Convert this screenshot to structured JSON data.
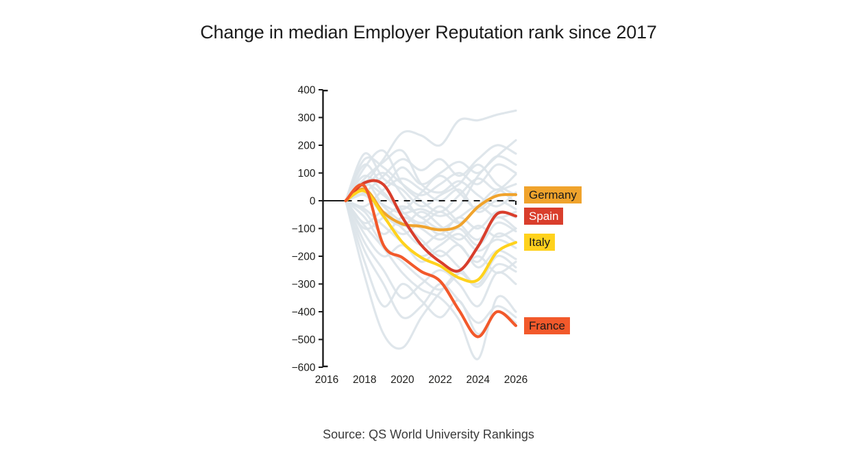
{
  "title": "Change in median Employer Reputation rank since 2017",
  "source": "Source: QS World University Rankings",
  "chart_data": {
    "type": "line",
    "description": "Median Employer Reputation rank change vs 2017 baseline; four highlighted countries over many light background country lines",
    "years": [
      2017,
      2018,
      2019,
      2020,
      2021,
      2022,
      2023,
      2024,
      2025,
      2026
    ],
    "x_axis": {
      "ticks": [
        2016,
        2018,
        2020,
        2022,
        2024,
        2026
      ],
      "tick_labels": [
        "2016",
        "2018",
        "2020",
        "2022",
        "2024",
        "2026"
      ],
      "range": [
        2016,
        2026
      ]
    },
    "y_axis": {
      "ticks": [
        400,
        300,
        200,
        100,
        0,
        -100,
        -200,
        -300,
        -400,
        -500,
        -600
      ],
      "tick_labels": [
        "400",
        "300",
        "200",
        "100",
        "0",
        "−100",
        "−200",
        "−300",
        "−400",
        "−500",
        "−600"
      ],
      "range": [
        400,
        -600
      ]
    },
    "zero_line": {
      "show": true,
      "color": "#1a1a1a",
      "style": "dashed"
    },
    "background_color": "#dce3e9",
    "axis_color": "#1a1a1a",
    "legend_position": "right-of-line-ends",
    "grid": false,
    "highlight": [
      {
        "name": "germany",
        "label": "Germany",
        "color": "#F0A32C",
        "label_bg": "#F0A32C",
        "label_text_color": "#1a1a1a",
        "values": [
          0,
          42,
          -42,
          -84,
          -92,
          -105,
          -90,
          -22,
          18,
          22
        ]
      },
      {
        "name": "spain",
        "label": "Spain",
        "color": "#D93E2C",
        "label_bg": "#D93E2C",
        "label_text_color": "#ffffff",
        "values": [
          0,
          65,
          58,
          -60,
          -160,
          -220,
          -252,
          -165,
          -48,
          -55
        ]
      },
      {
        "name": "italy",
        "label": "Italy",
        "color": "#FFD21D",
        "label_bg": "#FFD21D",
        "label_text_color": "#1a1a1a",
        "values": [
          0,
          35,
          -55,
          -150,
          -205,
          -235,
          -278,
          -285,
          -185,
          -150
        ]
      },
      {
        "name": "france",
        "label": "France",
        "color": "#F2592B",
        "label_bg": "#F2592B",
        "label_text_color": "#1a1a1a",
        "values": [
          0,
          52,
          -160,
          -205,
          -255,
          -290,
          -395,
          -490,
          -400,
          -450
        ]
      }
    ],
    "background_series": [
      [
        0,
        60,
        150,
        245,
        235,
        200,
        290,
        290,
        310,
        325
      ],
      [
        0,
        25,
        -15,
        -45,
        -30,
        -55,
        -20,
        90,
        160,
        218
      ],
      [
        0,
        -270,
        -480,
        -530,
        -420,
        -330,
        -260,
        -310,
        -230,
        -255
      ],
      [
        0,
        -90,
        -170,
        -260,
        -320,
        -350,
        -430,
        -570,
        -350,
        -400
      ],
      [
        0,
        150,
        120,
        60,
        20,
        60,
        100,
        60,
        130,
        100
      ],
      [
        0,
        170,
        80,
        40,
        -20,
        20,
        60,
        130,
        60,
        20
      ],
      [
        0,
        120,
        180,
        60,
        0,
        -40,
        20,
        80,
        40,
        95
      ],
      [
        0,
        80,
        140,
        180,
        60,
        30,
        70,
        20,
        -20,
        30
      ],
      [
        0,
        40,
        -60,
        -120,
        -80,
        -120,
        -60,
        -100,
        -40,
        -60
      ],
      [
        0,
        -40,
        -120,
        -60,
        -100,
        -140,
        -100,
        -160,
        -80,
        -110
      ],
      [
        0,
        60,
        20,
        -40,
        -80,
        -40,
        -80,
        -20,
        40,
        -10
      ],
      [
        0,
        -80,
        -40,
        -100,
        -160,
        -120,
        -160,
        -220,
        -120,
        -150
      ],
      [
        0,
        -150,
        -250,
        -350,
        -300,
        -250,
        -300,
        -380,
        -260,
        -300
      ],
      [
        0,
        -60,
        -160,
        -220,
        -280,
        -320,
        -260,
        -200,
        -260,
        -220
      ],
      [
        0,
        30,
        90,
        150,
        110,
        150,
        90,
        150,
        200,
        170
      ],
      [
        0,
        -20,
        40,
        80,
        40,
        0,
        40,
        -40,
        0,
        -30
      ],
      [
        0,
        -120,
        -200,
        -160,
        -220,
        -180,
        -240,
        -300,
        -200,
        -240
      ],
      [
        0,
        90,
        30,
        -30,
        30,
        90,
        30,
        -30,
        30,
        60
      ],
      [
        0,
        -180,
        -300,
        -420,
        -380,
        -300,
        -360,
        -440,
        -380,
        -420
      ],
      [
        0,
        50,
        100,
        20,
        -60,
        -20,
        -80,
        -140,
        -60,
        -100
      ],
      [
        0,
        -30,
        -90,
        -150,
        -200,
        -160,
        -120,
        -180,
        -140,
        -170
      ],
      [
        0,
        20,
        -50,
        -90,
        -40,
        -90,
        -140,
        -90,
        -130,
        -100
      ],
      [
        0,
        -100,
        -60,
        -20,
        -60,
        -100,
        -60,
        -20,
        -60,
        -40
      ],
      [
        0,
        130,
        60,
        120,
        60,
        100,
        140,
        100,
        160,
        130
      ],
      [
        0,
        -220,
        -380,
        -300,
        -360,
        -420,
        -360,
        -480,
        -400,
        -440
      ],
      [
        0,
        70,
        -20,
        -80,
        -140,
        -200,
        -160,
        -240,
        -180,
        -210
      ]
    ]
  }
}
